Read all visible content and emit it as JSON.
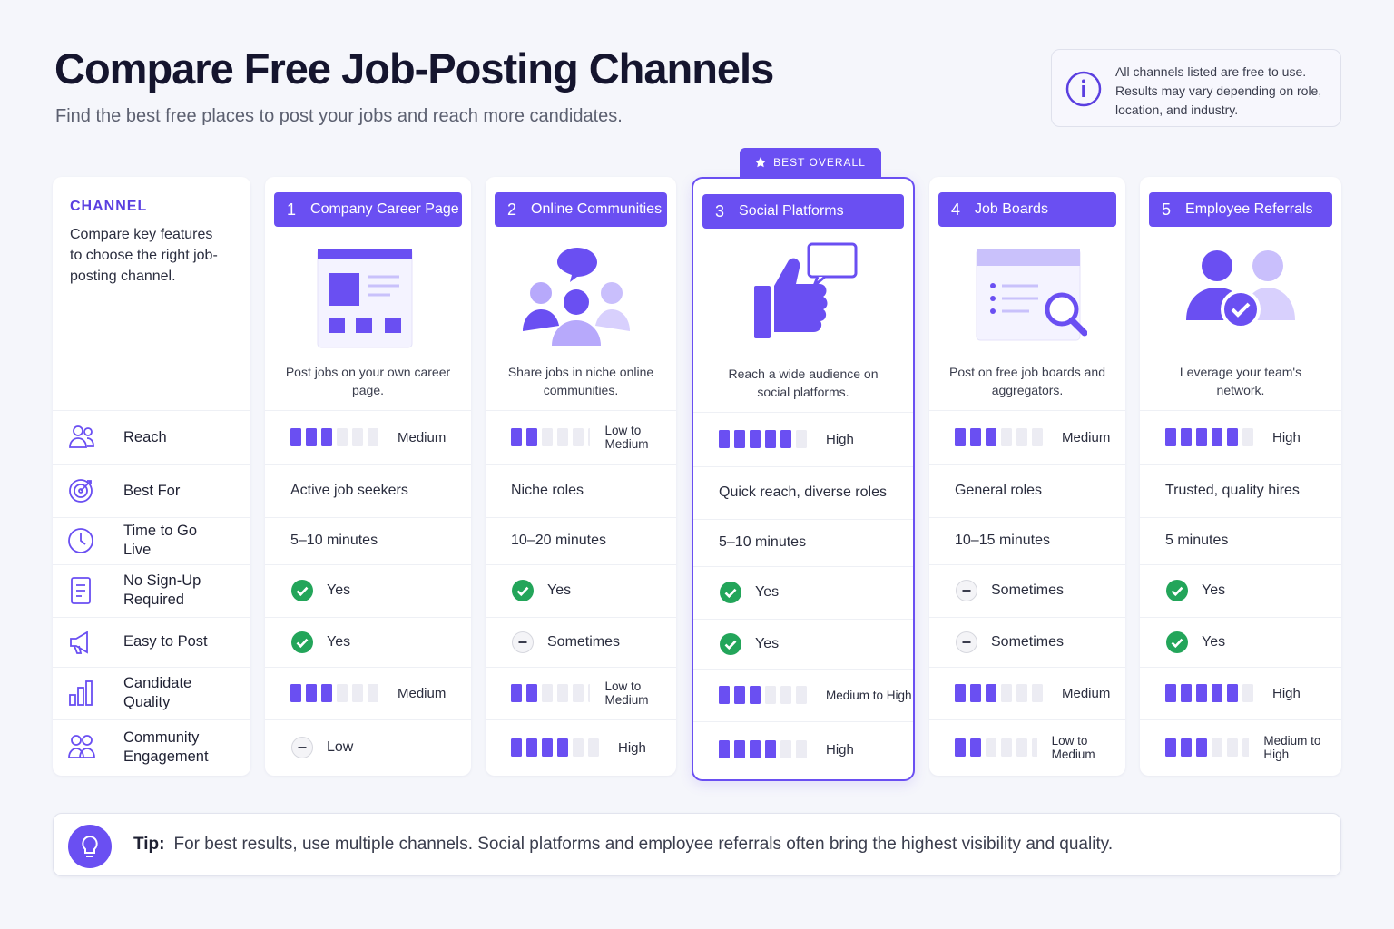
{
  "header": {
    "title": "Compare Free Job-Posting Channels",
    "subtitle": "Find the best free places to post your jobs and reach more candidates.",
    "info": "All channels listed are free to use. Results may vary depending on role, location, and industry."
  },
  "table": {
    "label_column": {
      "heading": "CHANNEL",
      "description": "Compare key features to choose the right job-posting channel."
    },
    "badge": "BEST OVERALL",
    "level_max": 6,
    "rows": [
      "Reach",
      "Best For",
      "Time to Go Live",
      "No Sign-Up Required",
      "Easy to Post",
      "Candidate Quality",
      "Community Engagement"
    ],
    "channels": [
      {
        "number": 1,
        "name": "Company Career Page",
        "description": "Post jobs on your own career page.",
        "highlight": false,
        "cells": [
          {
            "level": 3,
            "label": "Medium"
          },
          {
            "text": "Active job seekers"
          },
          {
            "text": "5–10 minutes"
          },
          {
            "icon": "check",
            "text": "Yes"
          },
          {
            "icon": "check",
            "text": "Yes"
          },
          {
            "level": 3,
            "label": "Medium"
          },
          {
            "icon": "dash",
            "text": "Low"
          }
        ]
      },
      {
        "number": 2,
        "name": "Online Communities",
        "description": "Share jobs in niche online communities.",
        "highlight": false,
        "cells": [
          {
            "level": 2,
            "label": "Low to Medium"
          },
          {
            "text": "Niche roles"
          },
          {
            "text": "10–20 minutes"
          },
          {
            "icon": "check",
            "text": "Yes"
          },
          {
            "icon": "dash",
            "text": "Sometimes"
          },
          {
            "level": 2,
            "label": "Low to Medium"
          },
          {
            "level": 4,
            "label": "High"
          }
        ]
      },
      {
        "number": 3,
        "name": "Social Platforms",
        "description": "Reach a wide audience on social platforms.",
        "highlight": true,
        "cells": [
          {
            "level": 5,
            "label": "High"
          },
          {
            "text": "Quick reach, diverse roles"
          },
          {
            "text": "5–10 minutes"
          },
          {
            "icon": "check",
            "text": "Yes"
          },
          {
            "icon": "check",
            "text": "Yes"
          },
          {
            "level": 3,
            "label": "Medium to High"
          },
          {
            "level": 4,
            "label": "High"
          }
        ]
      },
      {
        "number": 4,
        "name": "Job Boards",
        "description": "Post on free job boards and aggregators.",
        "highlight": false,
        "cells": [
          {
            "level": 3,
            "label": "Medium"
          },
          {
            "text": "General roles"
          },
          {
            "text": "10–15 minutes"
          },
          {
            "icon": "dash",
            "text": "Sometimes"
          },
          {
            "icon": "dash",
            "text": "Sometimes"
          },
          {
            "level": 3,
            "label": "Medium"
          },
          {
            "level": 2,
            "label": "Low to Medium"
          }
        ]
      },
      {
        "number": 5,
        "name": "Employee Referrals",
        "description": "Leverage your team's network.",
        "highlight": false,
        "cells": [
          {
            "level": 5,
            "label": "High"
          },
          {
            "text": "Trusted, quality hires"
          },
          {
            "text": "5 minutes"
          },
          {
            "icon": "check",
            "text": "Yes"
          },
          {
            "icon": "check",
            "text": "Yes"
          },
          {
            "level": 5,
            "label": "High"
          },
          {
            "level": 3,
            "label": "Medium to High"
          }
        ]
      }
    ]
  },
  "tip": {
    "label": "Tip:",
    "text": "For best results, use multiple channels. Social platforms and employee referrals often bring the highest visibility and quality."
  }
}
